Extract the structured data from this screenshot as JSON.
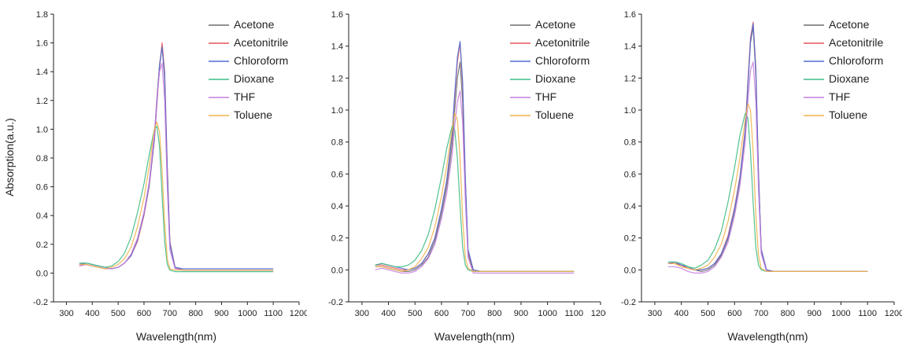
{
  "figure": {
    "ylabel": "Absorption(a.u.)",
    "xlabel": "Wavelength(nm)"
  },
  "colors": {
    "Acetone": "#6e6e6e",
    "Acetonitrile": "#e8545a",
    "Chloroform": "#4f6fd6",
    "Dioxane": "#3dbb85",
    "THF": "#c77fe0",
    "Toluene": "#f0b24b"
  },
  "chart_data": [
    {
      "type": "line",
      "xlabel": "Wavelength(nm)",
      "ylabel": "Absorption(a.u.)",
      "xlim": [
        250,
        1200
      ],
      "ylim": [
        -0.2,
        1.8
      ],
      "xticks": [
        300,
        400,
        500,
        600,
        700,
        800,
        900,
        1000,
        1100,
        1200
      ],
      "yticks": [
        -0.2,
        0.0,
        0.2,
        0.4,
        0.6,
        0.8,
        1.0,
        1.2,
        1.4,
        1.6,
        1.8
      ],
      "grid": false,
      "legend": "top-right",
      "x": [
        350,
        375,
        400,
        425,
        450,
        475,
        500,
        525,
        550,
        575,
        600,
        620,
        640,
        650,
        660,
        670,
        680,
        690,
        700,
        720,
        750,
        800,
        900,
        1000,
        1100
      ],
      "series": [
        {
          "name": "Acetone",
          "values": [
            0.06,
            0.06,
            0.05,
            0.04,
            0.03,
            0.03,
            0.04,
            0.07,
            0.13,
            0.24,
            0.42,
            0.62,
            0.95,
            1.22,
            1.45,
            1.58,
            1.35,
            0.7,
            0.2,
            0.04,
            0.02,
            0.02,
            0.02,
            0.02,
            0.02
          ]
        },
        {
          "name": "Acetonitrile",
          "values": [
            0.05,
            0.06,
            0.05,
            0.04,
            0.03,
            0.03,
            0.04,
            0.07,
            0.12,
            0.22,
            0.4,
            0.6,
            0.92,
            1.18,
            1.42,
            1.6,
            1.4,
            0.75,
            0.22,
            0.04,
            0.02,
            0.02,
            0.02,
            0.02,
            0.02
          ]
        },
        {
          "name": "Chloroform",
          "values": [
            0.06,
            0.07,
            0.06,
            0.05,
            0.04,
            0.03,
            0.04,
            0.07,
            0.12,
            0.23,
            0.41,
            0.61,
            0.93,
            1.2,
            1.44,
            1.57,
            1.38,
            0.72,
            0.21,
            0.04,
            0.03,
            0.03,
            0.03,
            0.03,
            0.03
          ]
        },
        {
          "name": "Dioxane",
          "values": [
            0.07,
            0.07,
            0.06,
            0.05,
            0.04,
            0.05,
            0.08,
            0.14,
            0.25,
            0.42,
            0.62,
            0.82,
            1.0,
            1.02,
            0.88,
            0.55,
            0.22,
            0.06,
            0.02,
            0.01,
            0.01,
            0.01,
            0.01,
            0.01,
            0.01
          ]
        },
        {
          "name": "THF",
          "values": [
            0.05,
            0.06,
            0.05,
            0.04,
            0.03,
            0.03,
            0.04,
            0.07,
            0.13,
            0.24,
            0.42,
            0.63,
            0.96,
            1.22,
            1.4,
            1.46,
            1.2,
            0.6,
            0.16,
            0.03,
            0.02,
            0.02,
            0.02,
            0.02,
            0.02
          ]
        },
        {
          "name": "Toluene",
          "values": [
            0.06,
            0.06,
            0.05,
            0.04,
            0.03,
            0.04,
            0.06,
            0.1,
            0.18,
            0.32,
            0.52,
            0.74,
            1.0,
            1.05,
            0.98,
            0.72,
            0.35,
            0.1,
            0.03,
            0.02,
            0.02,
            0.02,
            0.02,
            0.02,
            0.02
          ]
        }
      ]
    },
    {
      "type": "line",
      "xlabel": "Wavelength(nm)",
      "ylabel": "",
      "xlim": [
        250,
        1200
      ],
      "ylim": [
        -0.2,
        1.6
      ],
      "xticks": [
        300,
        400,
        500,
        600,
        700,
        800,
        900,
        1000,
        1100,
        1200
      ],
      "yticks": [
        -0.2,
        0.0,
        0.2,
        0.4,
        0.6,
        0.8,
        1.0,
        1.2,
        1.4,
        1.6
      ],
      "grid": false,
      "legend": "top-right",
      "x": [
        350,
        375,
        400,
        425,
        450,
        475,
        500,
        525,
        550,
        575,
        600,
        620,
        640,
        650,
        660,
        670,
        680,
        690,
        700,
        720,
        750,
        800,
        900,
        1000,
        1100
      ],
      "series": [
        {
          "name": "Acetone",
          "values": [
            0.02,
            0.02,
            0.01,
            0.0,
            -0.01,
            -0.01,
            0.0,
            0.03,
            0.08,
            0.18,
            0.35,
            0.52,
            0.78,
            1.0,
            1.2,
            1.3,
            1.05,
            0.5,
            0.1,
            -0.01,
            -0.01,
            -0.01,
            -0.01,
            -0.01,
            -0.01
          ]
        },
        {
          "name": "Acetonitrile",
          "values": [
            0.03,
            0.03,
            0.02,
            0.01,
            0.0,
            0.0,
            0.01,
            0.04,
            0.1,
            0.2,
            0.38,
            0.56,
            0.84,
            1.08,
            1.3,
            1.42,
            1.15,
            0.56,
            0.12,
            0.0,
            -0.01,
            -0.01,
            -0.01,
            -0.01,
            -0.01
          ]
        },
        {
          "name": "Chloroform",
          "values": [
            0.03,
            0.04,
            0.03,
            0.02,
            0.01,
            0.0,
            0.01,
            0.04,
            0.1,
            0.2,
            0.38,
            0.56,
            0.85,
            1.1,
            1.33,
            1.43,
            1.18,
            0.58,
            0.13,
            0.0,
            -0.01,
            -0.01,
            -0.01,
            -0.01,
            -0.01
          ]
        },
        {
          "name": "Dioxane",
          "values": [
            0.03,
            0.04,
            0.03,
            0.02,
            0.02,
            0.03,
            0.06,
            0.12,
            0.22,
            0.38,
            0.58,
            0.76,
            0.9,
            0.88,
            0.7,
            0.4,
            0.14,
            0.03,
            0.0,
            -0.01,
            -0.01,
            -0.01,
            -0.01,
            -0.01,
            -0.01
          ]
        },
        {
          "name": "THF",
          "values": [
            0.0,
            0.01,
            0.0,
            -0.01,
            -0.02,
            -0.02,
            -0.01,
            0.02,
            0.07,
            0.16,
            0.32,
            0.48,
            0.72,
            0.9,
            1.05,
            1.12,
            0.92,
            0.44,
            0.08,
            -0.02,
            -0.02,
            -0.02,
            -0.02,
            -0.02,
            -0.02
          ]
        },
        {
          "name": "Toluene",
          "values": [
            0.02,
            0.02,
            0.01,
            0.0,
            -0.01,
            0.0,
            0.02,
            0.07,
            0.14,
            0.27,
            0.46,
            0.65,
            0.88,
            0.98,
            0.94,
            0.7,
            0.32,
            0.08,
            0.01,
            -0.01,
            -0.01,
            -0.01,
            -0.01,
            -0.01,
            -0.01
          ]
        }
      ]
    },
    {
      "type": "line",
      "xlabel": "Wavelength(nm)",
      "ylabel": "",
      "xlim": [
        250,
        1200
      ],
      "ylim": [
        -0.2,
        1.6
      ],
      "xticks": [
        300,
        400,
        500,
        600,
        700,
        800,
        900,
        1000,
        1100,
        1200
      ],
      "yticks": [
        -0.2,
        0.0,
        0.2,
        0.4,
        0.6,
        0.8,
        1.0,
        1.2,
        1.4,
        1.6
      ],
      "grid": false,
      "legend": "top-right",
      "x": [
        350,
        375,
        400,
        425,
        450,
        475,
        500,
        525,
        550,
        575,
        600,
        620,
        640,
        650,
        660,
        670,
        680,
        690,
        700,
        720,
        750,
        800,
        900,
        1000,
        1100
      ],
      "series": [
        {
          "name": "Acetone",
          "values": [
            0.04,
            0.04,
            0.03,
            0.01,
            0.0,
            -0.01,
            0.0,
            0.03,
            0.09,
            0.19,
            0.37,
            0.56,
            0.86,
            1.15,
            1.42,
            1.52,
            1.22,
            0.58,
            0.12,
            0.0,
            -0.01,
            -0.01,
            -0.01,
            -0.01,
            -0.01
          ]
        },
        {
          "name": "Acetonitrile",
          "values": [
            0.04,
            0.04,
            0.03,
            0.01,
            0.0,
            0.0,
            0.01,
            0.04,
            0.1,
            0.21,
            0.39,
            0.58,
            0.88,
            1.18,
            1.45,
            1.55,
            1.26,
            0.6,
            0.13,
            0.0,
            -0.01,
            -0.01,
            -0.01,
            -0.01,
            -0.01
          ]
        },
        {
          "name": "Chloroform",
          "values": [
            0.04,
            0.05,
            0.03,
            0.02,
            0.0,
            0.0,
            0.01,
            0.04,
            0.1,
            0.2,
            0.38,
            0.57,
            0.87,
            1.16,
            1.43,
            1.54,
            1.25,
            0.6,
            0.13,
            0.0,
            -0.01,
            -0.01,
            -0.01,
            -0.01,
            -0.01
          ]
        },
        {
          "name": "Dioxane",
          "values": [
            0.05,
            0.05,
            0.04,
            0.02,
            0.01,
            0.03,
            0.06,
            0.13,
            0.24,
            0.42,
            0.64,
            0.84,
            0.98,
            0.95,
            0.74,
            0.42,
            0.14,
            0.03,
            0.0,
            -0.01,
            -0.01,
            -0.01,
            -0.01,
            -0.01,
            -0.01
          ]
        },
        {
          "name": "THF",
          "values": [
            0.02,
            0.02,
            0.01,
            -0.01,
            -0.02,
            -0.02,
            -0.01,
            0.02,
            0.08,
            0.17,
            0.34,
            0.52,
            0.8,
            1.05,
            1.25,
            1.3,
            1.05,
            0.5,
            0.1,
            -0.01,
            -0.01,
            -0.01,
            -0.01,
            -0.01,
            -0.01
          ]
        },
        {
          "name": "Toluene",
          "values": [
            0.04,
            0.04,
            0.02,
            0.01,
            0.0,
            0.01,
            0.03,
            0.08,
            0.16,
            0.3,
            0.5,
            0.7,
            0.94,
            1.04,
            1.0,
            0.74,
            0.34,
            0.09,
            0.01,
            -0.01,
            -0.01,
            -0.01,
            -0.01,
            -0.01,
            -0.01
          ]
        }
      ]
    }
  ]
}
